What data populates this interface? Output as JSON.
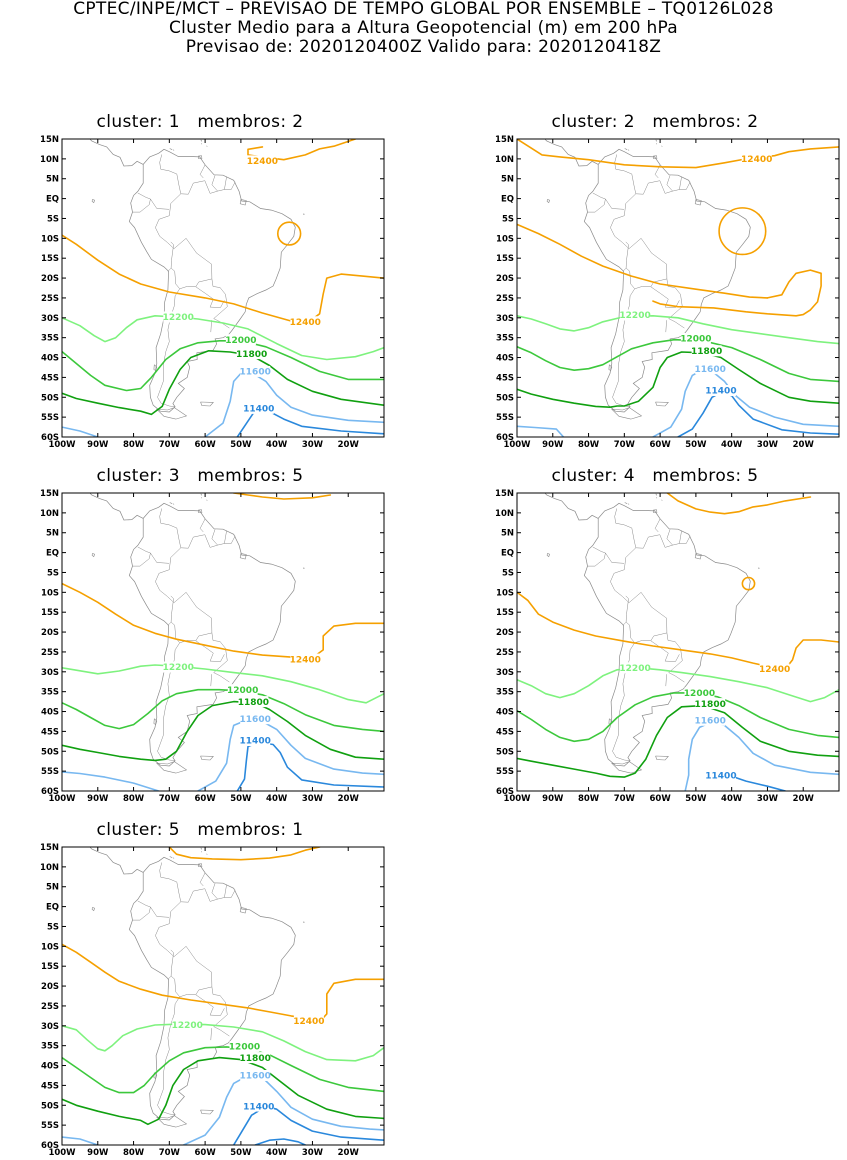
{
  "header": {
    "line1": "CPTEC/INPE/MCT – PREVISAO DE TEMPO GLOBAL POR ENSEMBLE – TQ0126L028",
    "line2": "Cluster Medio para a Altura Geopotencial (m) em 200 hPa",
    "line3": "Previsao de: 2020120400Z    Valido para: 2020120418Z"
  },
  "map": {
    "lat_ticks": [
      "15N",
      "10N",
      "5N",
      "EQ",
      "5S",
      "10S",
      "15S",
      "20S",
      "25S",
      "30S",
      "35S",
      "40S",
      "45S",
      "50S",
      "55S",
      "60S"
    ],
    "lon_ticks": [
      "100W",
      "90W",
      "80W",
      "70W",
      "60W",
      "50W",
      "40W",
      "30W",
      "20W"
    ],
    "lat_range": [
      15,
      -60
    ],
    "lon_range": [
      -100,
      -10
    ]
  },
  "colors": {
    "c12400": "#f5a000",
    "c12200": "#7ef27e",
    "c12000": "#3cc83c",
    "c11800": "#10a010",
    "c11600": "#78b8f0",
    "c11400": "#2a88dc",
    "land": "#8a8a8a"
  },
  "contour_labels": {
    "c12400": "12400",
    "c12200": "12200",
    "c12000": "12000",
    "c11800": "11800",
    "c11600": "11600",
    "c11400": "11400"
  },
  "panels": [
    {
      "title": "cluster: 1   membros: 2"
    },
    {
      "title": "cluster: 2   membros: 2"
    },
    {
      "title": "cluster: 3   membros: 5"
    },
    {
      "title": "cluster: 4   membros: 5"
    },
    {
      "title": "cluster: 5   membros: 1"
    }
  ],
  "chart_data": [
    {
      "type": "contour_map",
      "title": "cluster: 1   membros: 2",
      "variable": "Altura Geopotencial 200 hPa (m)",
      "contour_levels": [
        12400,
        12200,
        12000,
        11800,
        11600,
        11400
      ]
    },
    {
      "type": "contour_map",
      "title": "cluster: 2   membros: 2",
      "variable": "Altura Geopotencial 200 hPa (m)",
      "contour_levels": [
        12400,
        12200,
        12000,
        11800,
        11600,
        11400
      ]
    },
    {
      "type": "contour_map",
      "title": "cluster: 3   membros: 5",
      "variable": "Altura Geopotencial 200 hPa (m)",
      "contour_levels": [
        12400,
        12200,
        12000,
        11800,
        11600,
        11400
      ]
    },
    {
      "type": "contour_map",
      "title": "cluster: 4   membros: 5",
      "variable": "Altura Geopotencial 200 hPa (m)",
      "contour_levels": [
        12400,
        12200,
        12000,
        11800,
        11600,
        11400
      ]
    },
    {
      "type": "contour_map",
      "title": "cluster: 5   membros: 1",
      "variable": "Altura Geopotencial 200 hPa (m)",
      "contour_levels": [
        12400,
        12200,
        12000,
        11800,
        11600,
        11400
      ]
    }
  ]
}
